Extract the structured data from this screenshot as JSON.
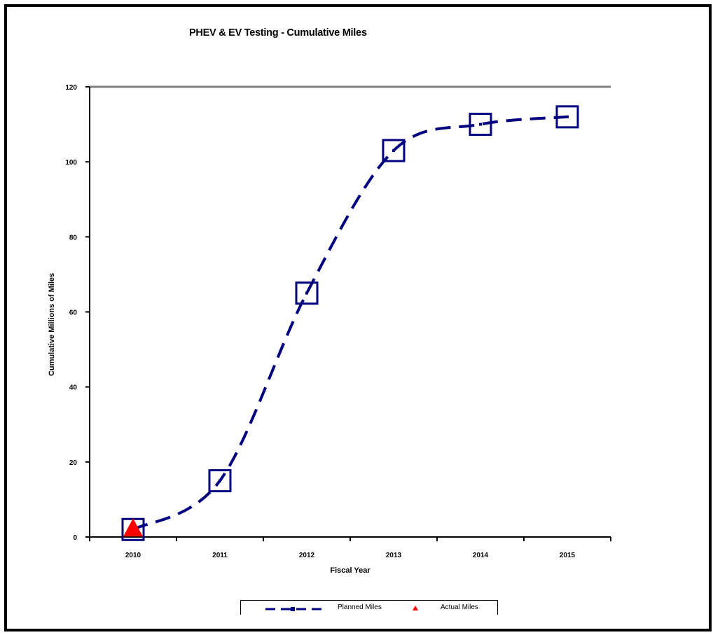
{
  "chart_data": {
    "type": "line",
    "title": "PHEV & EV Testing - Cumulative Miles",
    "xlabel": "Fiscal Year",
    "ylabel": "Cumulative Millions of Miles",
    "categories": [
      "2010",
      "2011",
      "2012",
      "2013",
      "2014",
      "2015"
    ],
    "ylim": [
      0,
      120
    ],
    "yticks": [
      0,
      20,
      40,
      60,
      80,
      100,
      120
    ],
    "grid": false,
    "legend_position": "bottom",
    "series": [
      {
        "name": "Planned Miles",
        "values": [
          2,
          15,
          65,
          103,
          110,
          112
        ],
        "color": "#00007f",
        "marker": "square",
        "style": "dashed"
      },
      {
        "name": "Actual Miles",
        "values": [
          2,
          null,
          null,
          null,
          null,
          null
        ],
        "color": "#ff0000",
        "marker": "triangle"
      }
    ]
  }
}
